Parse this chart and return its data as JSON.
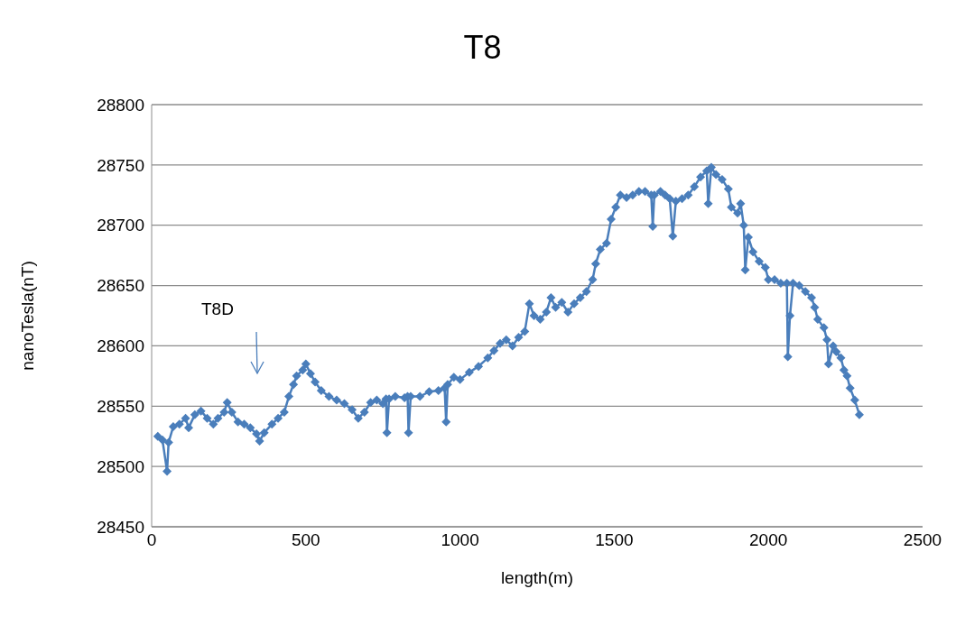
{
  "chart_data": {
    "type": "line",
    "title": "T8",
    "xlabel": "length(m)",
    "ylabel": "nanoTesla(nT)",
    "xlim": [
      0,
      2500
    ],
    "xticks": [
      0,
      500,
      1000,
      1500,
      2000,
      2500
    ],
    "ylim": [
      28450,
      28800
    ],
    "yticks": [
      28450,
      28500,
      28550,
      28600,
      28650,
      28700,
      28750,
      28800
    ],
    "grid": "y",
    "marker": "diamond",
    "line_style": "solid",
    "annotations": [
      "T8D"
    ],
    "x": [
      20,
      35,
      50,
      55,
      70,
      90,
      110,
      120,
      140,
      160,
      180,
      200,
      215,
      235,
      245,
      260,
      280,
      300,
      320,
      340,
      350,
      365,
      390,
      410,
      430,
      445,
      460,
      470,
      490,
      500,
      515,
      530,
      550,
      575,
      600,
      625,
      650,
      670,
      690,
      710,
      730,
      750,
      760,
      763,
      770,
      790,
      820,
      830,
      833,
      840,
      870,
      900,
      930,
      950,
      955,
      960,
      980,
      1000,
      1030,
      1060,
      1090,
      1110,
      1130,
      1150,
      1170,
      1190,
      1210,
      1225,
      1240,
      1260,
      1280,
      1295,
      1310,
      1330,
      1350,
      1370,
      1390,
      1410,
      1430,
      1440,
      1455,
      1475,
      1490,
      1505,
      1520,
      1540,
      1560,
      1580,
      1600,
      1620,
      1625,
      1630,
      1650,
      1665,
      1680,
      1690,
      1700,
      1720,
      1740,
      1760,
      1780,
      1800,
      1805,
      1815,
      1830,
      1850,
      1870,
      1880,
      1900,
      1910,
      1920,
      1925,
      1935,
      1950,
      1970,
      1990,
      2000,
      2020,
      2040,
      2060,
      2063,
      2070,
      2080,
      2100,
      2120,
      2140,
      2150,
      2160,
      2180,
      2190,
      2195,
      2210,
      2220,
      2235,
      2245,
      2255,
      2265,
      2280,
      2295
    ],
    "series": [
      {
        "color": "#4a7ebb",
        "values": [
          28525,
          28522,
          28496,
          28520,
          28533,
          28535,
          28540,
          28532,
          28543,
          28546,
          28540,
          28535,
          28540,
          28545,
          28553,
          28545,
          28537,
          28535,
          28532,
          28527,
          28521,
          28528,
          28535,
          28540,
          28545,
          28558,
          28568,
          28575,
          28580,
          28585,
          28577,
          28570,
          28563,
          28558,
          28555,
          28552,
          28547,
          28540,
          28545,
          28553,
          28555,
          28552,
          28556,
          28528,
          28556,
          28558,
          28557,
          28558,
          28528,
          28558,
          28558,
          28562,
          28563,
          28565,
          28537,
          28568,
          28574,
          28572,
          28578,
          28583,
          28590,
          28596,
          28602,
          28605,
          28600,
          28607,
          28612,
          28635,
          28625,
          28622,
          28628,
          28640,
          28632,
          28636,
          28628,
          28635,
          28640,
          28645,
          28655,
          28668,
          28680,
          28685,
          28705,
          28715,
          28725,
          28723,
          28725,
          28728,
          28728,
          28725,
          28699,
          28725,
          28728,
          28725,
          28722,
          28691,
          28720,
          28722,
          28725,
          28732,
          28740,
          28745,
          28718,
          28748,
          28742,
          28738,
          28730,
          28715,
          28710,
          28718,
          28700,
          28663,
          28690,
          28678,
          28670,
          28665,
          28655,
          28655,
          28652,
          28652,
          28591,
          28625,
          28652,
          28650,
          28645,
          28640,
          28632,
          28622,
          28615,
          28605,
          28585,
          28600,
          28595,
          28590,
          28580,
          28575,
          28565,
          28555,
          28543
        ]
      }
    ]
  }
}
